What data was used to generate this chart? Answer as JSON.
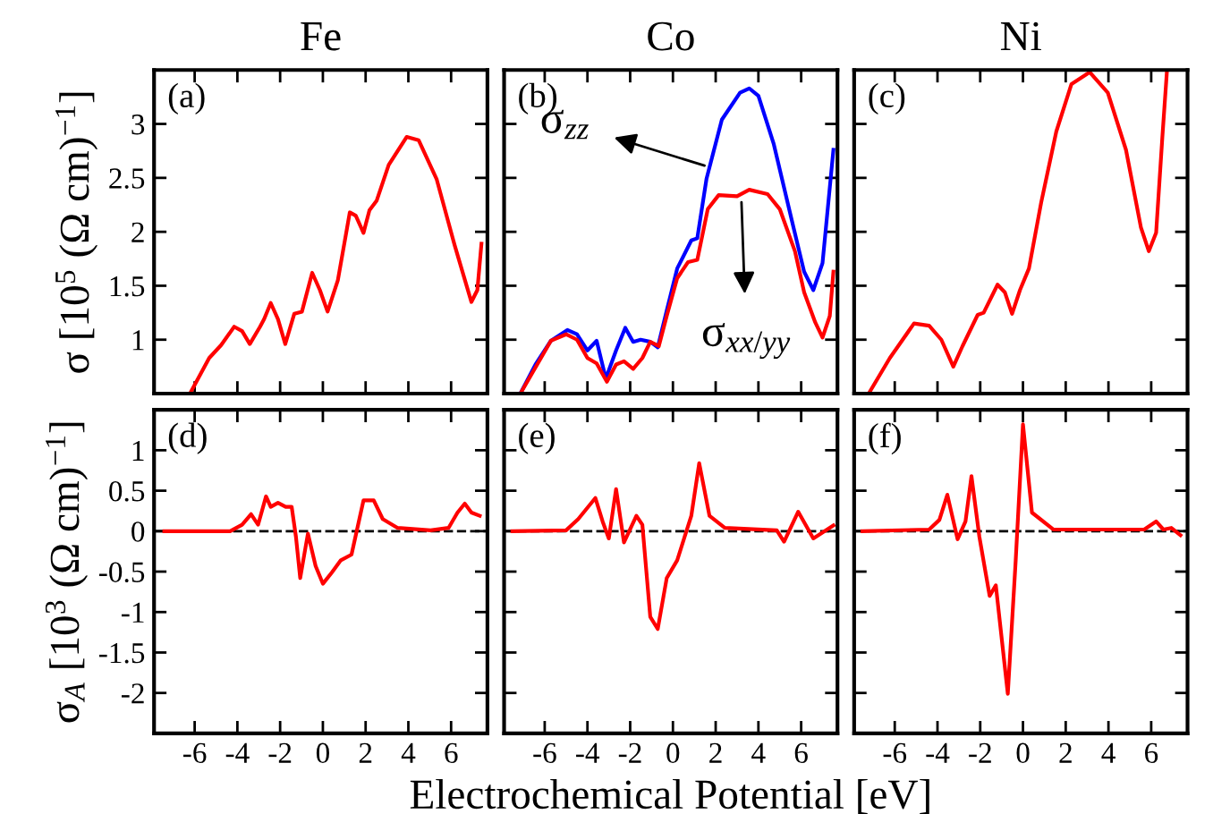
{
  "chart_data": [
    {
      "type": "line",
      "title": "Fe",
      "ylabel": "σ [10$^{5}$ (Ω cm)$^{−1}$]",
      "annotations": [
        "(a)"
      ],
      "xlim": [
        -7.9,
        7.7
      ],
      "ylim": [
        0.5,
        3.5
      ],
      "xticks": [
        -6,
        -4,
        -2,
        0,
        2,
        4,
        6
      ],
      "yticks": [
        1,
        1.5,
        2,
        2.5,
        3
      ],
      "tick_labels": "y",
      "series": [
        {
          "color": "#ff0000",
          "x": [
            -6.22,
            -5.32,
            -4.76,
            -4.15,
            -3.78,
            -3.42,
            -2.94,
            -2.75,
            -2.44,
            -2.1,
            -1.76,
            -1.34,
            -0.98,
            -0.5,
            -0.14,
            0.22,
            0.7,
            1.26,
            1.54,
            1.9,
            2.18,
            2.52,
            3.08,
            3.92,
            4.48,
            5.32,
            6.16,
            6.95,
            7.23,
            7.42
          ],
          "values": [
            0.5,
            0.83,
            0.95,
            1.12,
            1.08,
            0.96,
            1.12,
            1.19,
            1.34,
            1.19,
            0.96,
            1.24,
            1.26,
            1.62,
            1.46,
            1.26,
            1.55,
            2.18,
            2.15,
            1.99,
            2.2,
            2.29,
            2.62,
            2.88,
            2.85,
            2.49,
            1.88,
            1.35,
            1.46,
            1.89
          ]
        }
      ]
    },
    {
      "type": "line",
      "title": "Co",
      "annotations": [
        "(b)",
        {
          "text": "σ$_{zz}$",
          "x": 1.7,
          "y": 2.6
        },
        {
          "text": "σ$_{xx/yy}$",
          "x": 3.2,
          "y": 2.32
        }
      ],
      "xlim": [
        -7.9,
        7.7
      ],
      "ylim": [
        0.5,
        3.5
      ],
      "xticks": [
        -6,
        -4,
        -2,
        0,
        2,
        4,
        6
      ],
      "yticks": [
        1,
        1.5,
        2,
        2.5,
        3
      ],
      "tick_labels": false,
      "series": [
        {
          "color": "#0000ff",
          "x": [
            -7.14,
            -6.43,
            -5.71,
            -4.94,
            -4.49,
            -4.0,
            -3.57,
            -3.14,
            -2.66,
            -2.23,
            -1.86,
            -1.51,
            -1.06,
            -0.71,
            -0.29,
            0.2,
            0.86,
            1.14,
            1.57,
            2.29,
            3.14,
            3.57,
            4.0,
            4.71,
            5.57,
            6.14,
            6.57,
            7.0,
            7.51
          ],
          "values": [
            0.5,
            0.77,
            0.99,
            1.09,
            1.05,
            0.9,
            0.99,
            0.64,
            0.9,
            1.11,
            0.98,
            1.0,
            0.98,
            0.93,
            1.27,
            1.66,
            1.92,
            1.94,
            2.49,
            3.04,
            3.29,
            3.33,
            3.26,
            2.82,
            2.1,
            1.63,
            1.46,
            1.71,
            2.76
          ]
        },
        {
          "color": "#ff0000",
          "x": [
            -7.14,
            -5.71,
            -5.0,
            -4.49,
            -4.0,
            -3.57,
            -3.09,
            -2.66,
            -2.29,
            -1.86,
            -1.43,
            -1.06,
            -0.66,
            -0.29,
            0.2,
            0.71,
            1.14,
            1.63,
            2.14,
            3.0,
            3.57,
            4.43,
            5.0,
            5.71,
            6.14,
            6.66,
            7.0,
            7.34,
            7.51
          ],
          "values": [
            0.5,
            0.99,
            1.05,
            1.0,
            0.83,
            0.78,
            0.61,
            0.77,
            0.8,
            0.73,
            0.83,
            0.98,
            0.94,
            1.22,
            1.57,
            1.72,
            1.74,
            2.21,
            2.34,
            2.33,
            2.39,
            2.35,
            2.21,
            1.82,
            1.44,
            1.16,
            1.02,
            1.22,
            1.63
          ]
        }
      ]
    },
    {
      "type": "line",
      "title": "Ni",
      "annotations": [
        "(c)"
      ],
      "xlim": [
        -7.9,
        7.7
      ],
      "ylim": [
        0.5,
        3.5
      ],
      "xticks": [
        -6,
        -4,
        -2,
        0,
        2,
        4,
        6
      ],
      "yticks": [
        1,
        1.5,
        2,
        2.5,
        3
      ],
      "tick_labels": false,
      "series": [
        {
          "color": "#ff0000",
          "x": [
            -7.22,
            -6.23,
            -5.1,
            -4.39,
            -3.82,
            -3.26,
            -2.83,
            -2.12,
            -1.84,
            -1.19,
            -0.85,
            -0.51,
            -0.14,
            0.28,
            0.85,
            1.56,
            2.27,
            3.12,
            3.97,
            4.82,
            5.52,
            5.89,
            6.23,
            6.52,
            6.74
          ],
          "values": [
            0.5,
            0.83,
            1.15,
            1.13,
            1.0,
            0.75,
            0.94,
            1.23,
            1.25,
            1.51,
            1.44,
            1.24,
            1.46,
            1.66,
            2.27,
            2.93,
            3.37,
            3.48,
            3.29,
            2.76,
            2.04,
            1.82,
            1.99,
            2.87,
            3.5
          ]
        }
      ]
    },
    {
      "type": "line",
      "ylabel": "σ$_{A}$ [10$^{3}$ (Ω cm)$^{−1}$]",
      "annotations": [
        "(d)"
      ],
      "xlim": [
        -7.9,
        7.7
      ],
      "ylim": [
        -2.5,
        1.5
      ],
      "xticks": [
        -6,
        -4,
        -2,
        0,
        2,
        4,
        6
      ],
      "yticks": [
        -2,
        -1.5,
        -1,
        -0.5,
        0,
        0.5,
        1
      ],
      "ref_lines": [
        {
          "axis": "y",
          "value": 0,
          "color": "#000000",
          "line_style": "dashed"
        }
      ],
      "series": [
        {
          "color": "#ff0000",
          "x": [
            -7.42,
            -4.34,
            -3.78,
            -3.36,
            -3.03,
            -2.66,
            -2.44,
            -2.1,
            -1.74,
            -1.46,
            -1.26,
            -1.06,
            -0.7,
            -0.34,
            0,
            0.42,
            0.84,
            1.34,
            1.9,
            2.38,
            2.8,
            3.5,
            5.04,
            5.88,
            6.3,
            6.64,
            6.95,
            7.34
          ],
          "values": [
            0,
            0,
            0.08,
            0.21,
            0.08,
            0.43,
            0.3,
            0.35,
            0.3,
            0.3,
            -0.07,
            -0.58,
            -0.03,
            -0.43,
            -0.65,
            -0.51,
            -0.36,
            -0.29,
            0.38,
            0.38,
            0.15,
            0.04,
            0.01,
            0.04,
            0.23,
            0.34,
            0.23,
            0.19
          ]
        }
      ]
    },
    {
      "type": "line",
      "xlabel": "Electrochemical Potential [eV]",
      "annotations": [
        "(e)"
      ],
      "xlim": [
        -7.9,
        7.7
      ],
      "ylim": [
        -2.5,
        1.5
      ],
      "xticks": [
        -6,
        -4,
        -2,
        0,
        2,
        4,
        6
      ],
      "yticks": [
        -2,
        -1.5,
        -1,
        -0.5,
        0,
        0.5,
        1
      ],
      "tick_labels": "x",
      "ref_lines": [
        {
          "axis": "y",
          "value": 0,
          "color": "#000000",
          "line_style": "dashed"
        }
      ],
      "series": [
        {
          "color": "#ff0000",
          "x": [
            -7.51,
            -5.0,
            -4.43,
            -3.63,
            -3.29,
            -3.0,
            -2.66,
            -2.29,
            -1.71,
            -1.43,
            -1.06,
            -0.71,
            -0.29,
            0.2,
            0.86,
            1.23,
            1.71,
            2.43,
            4.86,
            5.2,
            5.86,
            6.57,
            7.51
          ],
          "values": [
            0,
            0.01,
            0.15,
            0.41,
            0.12,
            -0.09,
            0.52,
            -0.14,
            0.19,
            0.08,
            -1.06,
            -1.21,
            -0.58,
            -0.36,
            0.19,
            0.84,
            0.19,
            0.04,
            0.01,
            -0.13,
            0.24,
            -0.09,
            0.07
          ]
        }
      ]
    },
    {
      "type": "line",
      "annotations": [
        "(f)"
      ],
      "xlim": [
        -7.9,
        7.7
      ],
      "ylim": [
        -2.5,
        1.5
      ],
      "xticks": [
        -6,
        -4,
        -2,
        0,
        2,
        4,
        6
      ],
      "yticks": [
        -2,
        -1.5,
        -1,
        -0.5,
        0,
        0.5,
        1
      ],
      "tick_labels": "x",
      "ref_lines": [
        {
          "axis": "y",
          "value": 0,
          "color": "#000000",
          "line_style": "dashed"
        }
      ],
      "series": [
        {
          "color": "#ff0000",
          "x": [
            -7.51,
            -4.39,
            -3.91,
            -3.54,
            -3.06,
            -2.69,
            -2.41,
            -2.04,
            -1.56,
            -1.27,
            -0.71,
            -0.34,
            0,
            0.42,
            1.42,
            5.67,
            6.23,
            6.57,
            6.94,
            7.37
          ],
          "values": [
            0,
            0.02,
            0.14,
            0.45,
            -0.1,
            0.12,
            0.68,
            -0.07,
            -0.8,
            -0.67,
            -2.01,
            -0.36,
            1.32,
            0.23,
            0.02,
            0.02,
            0.12,
            0.02,
            0.04,
            -0.05
          ]
        }
      ]
    }
  ]
}
